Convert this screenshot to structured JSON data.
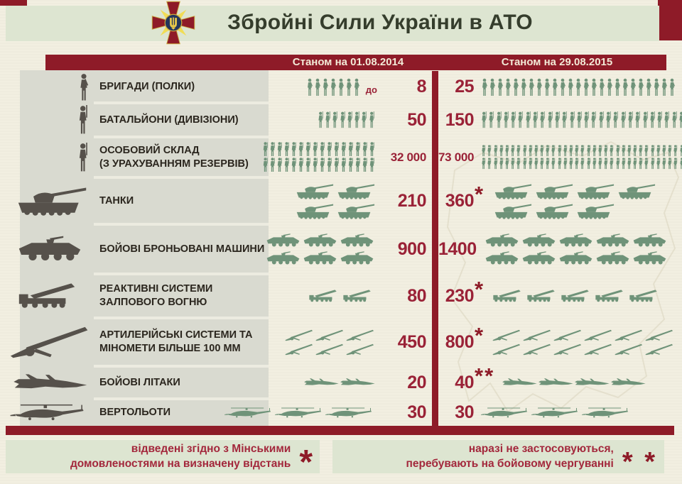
{
  "title": "Збройні Сили України в АТО",
  "columns": {
    "left": "Станом на 01.08.2014",
    "right": "Станом на 29.08.2015"
  },
  "rows": [
    {
      "id": "brigades",
      "label": [
        "БРИГАДИ (ПОЛКИ)"
      ],
      "icon": "person-a",
      "picto": "person-a",
      "left": {
        "prefix": "до",
        "value": "8",
        "lines": [
          7
        ]
      },
      "right": {
        "value": "25",
        "mark": "",
        "lines": [
          25
        ]
      }
    },
    {
      "id": "battalions",
      "label": [
        "БАТАЛЬЙОНИ (ДИВІЗІОНИ)"
      ],
      "icon": "person-b",
      "picto": "person-b",
      "left": {
        "value": "50",
        "lines": [
          8
        ]
      },
      "right": {
        "value": "150",
        "mark": "",
        "lines": [
          28
        ]
      }
    },
    {
      "id": "personnel",
      "label": [
        "ОСОБОВИЙ СКЛАД",
        "(З УРАХУВАННЯМ РЕЗЕРВІВ)"
      ],
      "icon": "person-b",
      "picto": "person-c",
      "left": {
        "value": "32 000",
        "lines": [
          16,
          16
        ]
      },
      "right": {
        "value": "73 000",
        "mark": "",
        "lines": [
          37,
          36
        ]
      }
    },
    {
      "id": "tanks",
      "label": [
        "ТАНКИ"
      ],
      "icon": "tank",
      "picto": "tank",
      "left": {
        "value": "210",
        "lines": [
          2,
          2
        ]
      },
      "right": {
        "value": "360",
        "mark": "*",
        "lines": [
          4,
          3
        ]
      }
    },
    {
      "id": "afv",
      "label": [
        "БОЙОВІ БРОНЬОВАНІ МАШИНИ"
      ],
      "icon": "apc",
      "picto": "apc",
      "left": {
        "value": "900",
        "lines": [
          3,
          3
        ]
      },
      "right": {
        "value": "1400",
        "mark": "",
        "lines": [
          5,
          5
        ]
      }
    },
    {
      "id": "mlrs",
      "label": [
        "РЕАКТИВНІ СИСТЕМИ",
        "ЗАЛПОВОГО ВОГНЮ"
      ],
      "icon": "mlrs",
      "picto": "mlrs",
      "left": {
        "value": "80",
        "lines": [
          2
        ]
      },
      "right": {
        "value": "230",
        "mark": "*",
        "lines": [
          5
        ]
      }
    },
    {
      "id": "artillery",
      "label": [
        "АРТИЛЕРІЙСЬКІ СИСТЕМИ ТА",
        "МІНОМЕТИ БІЛЬШЕ 100 ММ"
      ],
      "icon": "artillery",
      "picto": "artillery",
      "left": {
        "value": "450",
        "lines": [
          3,
          3
        ]
      },
      "right": {
        "value": "800",
        "mark": "*",
        "lines": [
          6,
          6
        ]
      }
    },
    {
      "id": "jets",
      "label": [
        "БОЙОВІ ЛІТАКИ"
      ],
      "icon": "jet",
      "picto": "jet",
      "left": {
        "value": "20",
        "lines": [
          2
        ]
      },
      "right": {
        "value": "40",
        "mark": "**",
        "lines": [
          4
        ]
      }
    },
    {
      "id": "helicopters",
      "label": [
        "ВЕРТОЛЬОТИ"
      ],
      "icon": "heli",
      "picto": "heli",
      "left": {
        "value": "30",
        "lines": [
          3
        ]
      },
      "right": {
        "value": "30",
        "mark": "",
        "lines": [
          3
        ]
      }
    }
  ],
  "footnotes": {
    "left": {
      "line1": "відведені згідно з Мінськими",
      "line2": "домовленостями на визначену відстань",
      "mark": "*"
    },
    "right": {
      "line1": "наразі не застосовуються,",
      "line2": "перебувають на бойовому чергуванні",
      "mark": "* *"
    }
  },
  "icons": [
    "armed-forces-emblem",
    "soldier-icon",
    "tank-icon",
    "apc-icon",
    "mlrs-icon",
    "artillery-icon",
    "jet-icon",
    "helicopter-icon"
  ],
  "colors": {
    "background": "#f2efe1",
    "band_green": "#dde5d1",
    "panel_gray": "#d9dad0",
    "accent_red": "#8e1b28",
    "number_red": "#9a2237",
    "pictogram_green": "#6f9379",
    "icon_gray": "#56514b",
    "footnote_red": "#a3283c",
    "header_text": "#f3ead7",
    "title_text": "#353d2c",
    "label_text": "#2b261e",
    "emblem_blue": "#23365c",
    "emblem_gold": "#e8c84a"
  },
  "chart_data": {
    "type": "table",
    "title": "Збройні Сили України в АТО",
    "categories": [
      "БРИГАДИ (ПОЛКИ)",
      "БАТАЛЬЙОНИ (ДИВІЗІОНИ)",
      "ОСОБОВИЙ СКЛАД (З УРАХУВАННЯМ РЕЗЕРВІВ)",
      "ТАНКИ",
      "БОЙОВІ БРОНЬОВАНІ МАШИНИ",
      "РЕАКТИВНІ СИСТЕМИ ЗАЛПОВОГО ВОГНЮ",
      "АРТИЛЕРІЙСЬКІ СИСТЕМИ ТА МІНОМЕТИ БІЛЬШЕ 100 ММ",
      "БОЙОВІ ЛІТАКИ",
      "ВЕРТОЛЬОТИ"
    ],
    "series": [
      {
        "name": "Станом на 01.08.2014",
        "values": [
          "до 8",
          "50",
          "32 000",
          "210",
          "900",
          "80",
          "450",
          "20",
          "30"
        ],
        "values_numeric": [
          8,
          50,
          32000,
          210,
          900,
          80,
          450,
          20,
          30
        ]
      },
      {
        "name": "Станом на 29.08.2015",
        "values": [
          "25",
          "150",
          "73 000",
          "360*",
          "1400",
          "230*",
          "800*",
          "40**",
          "30"
        ],
        "values_numeric": [
          25,
          150,
          73000,
          360,
          1400,
          230,
          800,
          40,
          30
        ]
      }
    ],
    "legend_position": "none",
    "notes": [
      "* відведені згідно з Мінськими домовленостями на визначену відстань",
      "** наразі не застосовуються, перебувають на бойовому чергуванні"
    ]
  }
}
